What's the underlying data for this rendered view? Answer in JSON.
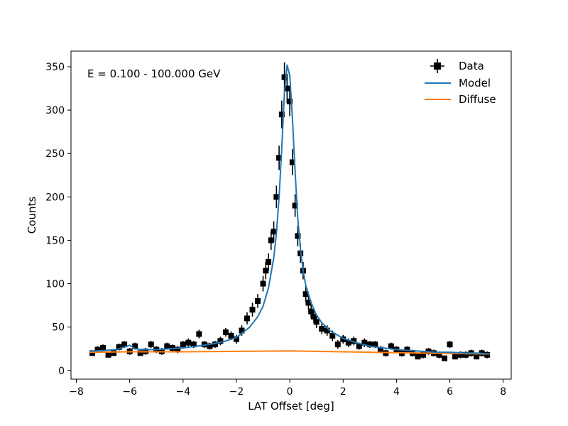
{
  "chart_data": {
    "type": "scatter",
    "annotation": "E = 0.100 - 100.000 GeV",
    "xlabel": "LAT Offset [deg]",
    "ylabel": "Counts",
    "xlim": [
      -8.2,
      8.3
    ],
    "ylim": [
      -10,
      368
    ],
    "xticks": [
      -8,
      -6,
      -4,
      -2,
      0,
      2,
      4,
      6,
      8
    ],
    "xtick_labels": [
      "−8",
      "−6",
      "−4",
      "−2",
      "0",
      "2",
      "4",
      "6",
      "8"
    ],
    "yticks": [
      0,
      50,
      100,
      150,
      200,
      250,
      300,
      350
    ],
    "ytick_labels": [
      "0",
      "50",
      "100",
      "150",
      "200",
      "250",
      "300",
      "350"
    ],
    "grid": false,
    "legend_position": "top-right",
    "legend": [
      "Data",
      "Model",
      "Diffuse"
    ],
    "colors": {
      "data": "#000000",
      "model": "#1f77b4",
      "diffuse": "#ff7f0e"
    },
    "data_points": {
      "x": [
        -7.4,
        -7.2,
        -7.0,
        -6.8,
        -6.6,
        -6.4,
        -6.2,
        -6.0,
        -5.8,
        -5.6,
        -5.4,
        -5.2,
        -5.0,
        -4.8,
        -4.6,
        -4.4,
        -4.2,
        -4.0,
        -3.8,
        -3.6,
        -3.4,
        -3.2,
        -3.0,
        -2.8,
        -2.6,
        -2.4,
        -2.2,
        -2.0,
        -1.8,
        -1.6,
        -1.4,
        -1.2,
        -1.0,
        -0.9,
        -0.8,
        -0.7,
        -0.6,
        -0.5,
        -0.4,
        -0.3,
        -0.2,
        -0.1,
        0.0,
        0.1,
        0.2,
        0.3,
        0.4,
        0.5,
        0.6,
        0.7,
        0.8,
        0.9,
        1.0,
        1.2,
        1.4,
        1.6,
        1.8,
        2.0,
        2.2,
        2.4,
        2.6,
        2.8,
        3.0,
        3.2,
        3.4,
        3.6,
        3.8,
        4.0,
        4.2,
        4.4,
        4.6,
        4.8,
        5.0,
        5.2,
        5.4,
        5.6,
        5.8,
        6.0,
        6.2,
        6.4,
        6.6,
        6.8,
        7.0,
        7.2,
        7.4
      ],
      "y": [
        20,
        24,
        26,
        18,
        20,
        27,
        30,
        22,
        28,
        20,
        22,
        30,
        24,
        22,
        28,
        26,
        24,
        30,
        32,
        30,
        42,
        30,
        28,
        30,
        34,
        44,
        40,
        36,
        46,
        60,
        70,
        80,
        100,
        115,
        125,
        150,
        160,
        200,
        245,
        295,
        338,
        325,
        310,
        240,
        190,
        155,
        135,
        115,
        88,
        78,
        68,
        62,
        56,
        48,
        46,
        40,
        30,
        36,
        32,
        34,
        28,
        32,
        30,
        30,
        24,
        20,
        28,
        24,
        20,
        24,
        20,
        16,
        18,
        22,
        20,
        18,
        14,
        30,
        16,
        18,
        18,
        20,
        16,
        20,
        18
      ],
      "y_err": [
        3,
        4,
        4,
        3,
        3,
        4,
        4,
        4,
        4,
        3,
        4,
        4,
        4,
        4,
        4,
        4,
        4,
        4,
        5,
        4,
        5,
        4,
        4,
        4,
        5,
        5,
        5,
        5,
        6,
        7,
        8,
        8,
        9,
        10,
        10,
        11,
        12,
        13,
        14,
        16,
        17,
        17,
        17,
        15,
        13,
        12,
        11,
        10,
        9,
        8,
        8,
        7,
        7,
        6,
        6,
        6,
        5,
        5,
        5,
        5,
        4,
        5,
        4,
        4,
        4,
        4,
        4,
        4,
        4,
        4,
        4,
        3,
        4,
        4,
        4,
        4,
        3,
        4,
        3,
        4,
        4,
        4,
        3,
        4,
        4
      ],
      "x_halfwidth": 0.1
    },
    "model": {
      "x": [
        -7.5,
        -7.0,
        -6.5,
        -6.2,
        -6.0,
        -5.8,
        -5.5,
        -5.0,
        -4.5,
        -4.0,
        -3.5,
        -3.0,
        -2.5,
        -2.0,
        -1.5,
        -1.2,
        -1.0,
        -0.8,
        -0.6,
        -0.5,
        -0.4,
        -0.3,
        -0.2,
        -0.1,
        0.0,
        0.1,
        0.2,
        0.3,
        0.4,
        0.5,
        0.6,
        0.8,
        1.0,
        1.2,
        1.5,
        2.0,
        2.5,
        3.0,
        3.5,
        4.0,
        4.5,
        5.0,
        5.5,
        6.0,
        6.5,
        7.0,
        7.5
      ],
      "y": [
        22,
        23,
        24,
        27,
        29,
        25,
        24,
        24,
        25,
        26,
        28,
        30,
        33,
        38,
        50,
        62,
        74,
        95,
        130,
        158,
        200,
        255,
        320,
        352,
        340,
        290,
        230,
        175,
        140,
        115,
        98,
        78,
        64,
        55,
        46,
        37,
        32,
        28,
        26,
        24,
        23,
        22,
        21,
        21,
        20,
        20,
        19
      ]
    },
    "diffuse": {
      "x": [
        -7.5,
        -6.0,
        -4.0,
        -2.0,
        0.0,
        2.0,
        4.0,
        6.0,
        7.5
      ],
      "y": [
        21,
        21.5,
        21.5,
        22,
        22.5,
        21.5,
        20.5,
        19.5,
        19
      ]
    }
  }
}
